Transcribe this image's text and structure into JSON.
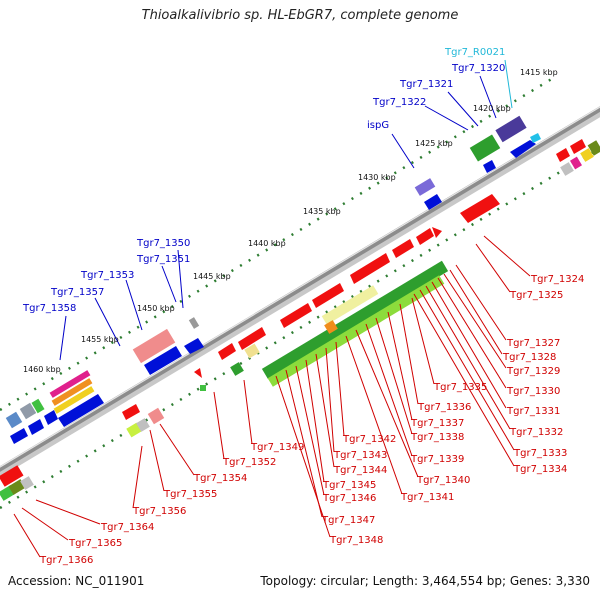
{
  "title": "Thioalkalivibrio sp. HL-EbGR7, complete genome",
  "footer": {
    "accession": "Accession: NC_011901",
    "topology": "Topology: circular; Length: 3,464,554 bp; Genes: 3,330"
  },
  "colors": {
    "backbone": "#8c8c8c",
    "ruler": "#2e7d32",
    "upper_label": "#0000c8",
    "lower_label": "#d00000",
    "rna_label": "#20b8d8"
  },
  "kbp_ticks": [
    {
      "label": "1415 kbp"
    },
    {
      "label": "1420 kbp"
    },
    {
      "label": "1425 kbp"
    },
    {
      "label": "1430 kbp"
    },
    {
      "label": "1435 kbp"
    },
    {
      "label": "1440 kbp"
    },
    {
      "label": "1445 kbp"
    },
    {
      "label": "1450 kbp"
    },
    {
      "label": "1455 kbp"
    },
    {
      "label": "1460 kbp"
    }
  ],
  "upper_labels": [
    {
      "text": "Tgr7_R0021",
      "type": "rna"
    },
    {
      "text": "Tgr7_1320",
      "type": "gene"
    },
    {
      "text": "Tgr7_1321",
      "type": "gene"
    },
    {
      "text": "Tgr7_1322",
      "type": "gene"
    },
    {
      "text": "ispG",
      "type": "gene"
    },
    {
      "text": "Tgr7_1350",
      "type": "gene"
    },
    {
      "text": "Tgr7_1351",
      "type": "gene"
    },
    {
      "text": "Tgr7_1353",
      "type": "gene"
    },
    {
      "text": "Tgr7_1357",
      "type": "gene"
    },
    {
      "text": "Tgr7_1358",
      "type": "gene"
    }
  ],
  "lower_labels": [
    {
      "text": "Tgr7_1324"
    },
    {
      "text": "Tgr7_1325"
    },
    {
      "text": "Tgr7_1327"
    },
    {
      "text": "Tgr7_1328"
    },
    {
      "text": "Tgr7_1329"
    },
    {
      "text": "Tgr7_1330"
    },
    {
      "text": "Tgr7_1331"
    },
    {
      "text": "Tgr7_1332"
    },
    {
      "text": "Tgr7_1333"
    },
    {
      "text": "Tgr7_1334"
    },
    {
      "text": "Tgr7_1335"
    },
    {
      "text": "Tgr7_1336"
    },
    {
      "text": "Tgr7_1337"
    },
    {
      "text": "Tgr7_1338"
    },
    {
      "text": "Tgr7_1339"
    },
    {
      "text": "Tgr7_1340"
    },
    {
      "text": "Tgr7_1341"
    },
    {
      "text": "Tgr7_1342"
    },
    {
      "text": "Tgr7_1343"
    },
    {
      "text": "Tgr7_1344"
    },
    {
      "text": "Tgr7_1345"
    },
    {
      "text": "Tgr7_1346"
    },
    {
      "text": "Tgr7_1347"
    },
    {
      "text": "Tgr7_1348"
    },
    {
      "text": "Tgr7_1349"
    },
    {
      "text": "Tgr7_1352"
    },
    {
      "text": "Tgr7_1354"
    },
    {
      "text": "Tgr7_1355"
    },
    {
      "text": "Tgr7_1356"
    },
    {
      "text": "Tgr7_1364"
    },
    {
      "text": "Tgr7_1365"
    },
    {
      "text": "Tgr7_1366"
    }
  ]
}
